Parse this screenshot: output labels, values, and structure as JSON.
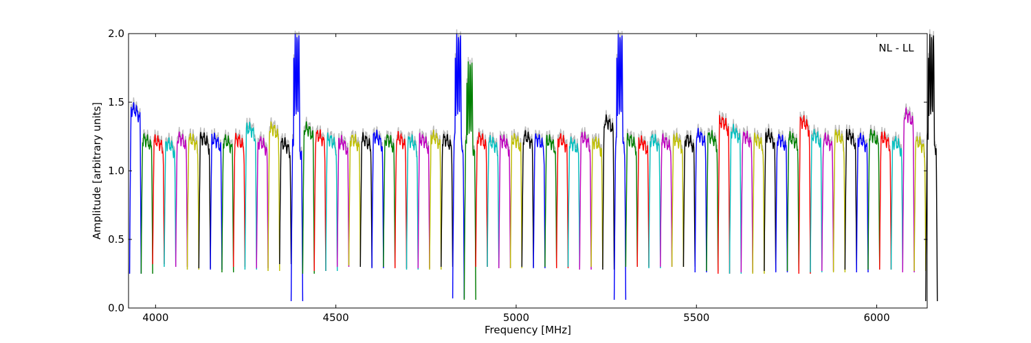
{
  "chart_data": {
    "type": "line",
    "xlabel": "Frequency [MHz]",
    "ylabel": "Amplitude [arbitrary units]",
    "xlim": [
      3925,
      6140
    ],
    "ylim": [
      0.0,
      2.0
    ],
    "xticks": [
      {
        "value": 4000,
        "label": "4000"
      },
      {
        "value": 4500,
        "label": "4500"
      },
      {
        "value": 5000,
        "label": "5000"
      },
      {
        "value": 5500,
        "label": "5500"
      },
      {
        "value": 6000,
        "label": "6000"
      }
    ],
    "yticks": [
      {
        "value": 0.0,
        "label": "0.0"
      },
      {
        "value": 0.5,
        "label": "0.5"
      },
      {
        "value": 1.0,
        "label": "1.0"
      },
      {
        "value": 1.5,
        "label": "1.5"
      },
      {
        "value": 2.0,
        "label": "2.0"
      }
    ],
    "annotation": "NL - LL",
    "grid": false,
    "colors": {
      "b": "#0000ff",
      "g": "#008000",
      "r": "#ff0000",
      "c": "#00bfbf",
      "m": "#bf00bf",
      "y": "#bfbf00",
      "k": "#000000",
      "background_trace": "#bbbbbb"
    },
    "color_cycle": [
      "b",
      "g",
      "r",
      "c",
      "m",
      "y",
      "k"
    ],
    "channel_start": 3928,
    "channel_width": 32,
    "channels": [
      {
        "level": 1.44,
        "min": 0.25
      },
      {
        "level": 1.22,
        "min": 0.25
      },
      {
        "level": 1.21,
        "min": 0.32
      },
      {
        "level": 1.19,
        "min": 0.3
      },
      {
        "level": 1.23,
        "min": 0.3
      },
      {
        "level": 1.22,
        "min": 0.28
      },
      {
        "level": 1.23,
        "min": 0.29
      },
      {
        "level": 1.22,
        "min": 0.28
      },
      {
        "level": 1.21,
        "min": 0.26
      },
      {
        "level": 1.22,
        "min": 0.3
      },
      {
        "level": 1.3,
        "min": 0.28
      },
      {
        "level": 1.2,
        "min": 0.29
      },
      {
        "level": 1.3,
        "min": 0.27
      },
      {
        "level": 1.19,
        "min": 0.32
      },
      {
        "level": 1.18,
        "min": 0.05,
        "spike": 2.0
      },
      {
        "level": 1.3,
        "min": 0.25
      },
      {
        "level": 1.25,
        "min": 0.27
      },
      {
        "level": 1.22,
        "min": 0.27
      },
      {
        "level": 1.2,
        "min": 0.3
      },
      {
        "level": 1.22,
        "min": 0.31
      },
      {
        "level": 1.22,
        "min": 0.3
      },
      {
        "level": 1.24,
        "min": 0.29
      },
      {
        "level": 1.22,
        "min": 0.3
      },
      {
        "level": 1.23,
        "min": 0.29
      },
      {
        "level": 1.21,
        "min": 0.28
      },
      {
        "level": 1.22,
        "min": 0.29
      },
      {
        "level": 1.24,
        "min": 0.28
      },
      {
        "level": 1.22,
        "min": 0.3
      },
      {
        "level": 1.22,
        "min": 0.07,
        "spike": 2.0
      },
      {
        "level": 1.2,
        "min": 0.06,
        "spike": 1.8
      },
      {
        "level": 1.23,
        "min": 0.3
      },
      {
        "level": 1.2,
        "min": 0.3
      },
      {
        "level": 1.21,
        "min": 0.29
      },
      {
        "level": 1.22,
        "min": 0.29
      },
      {
        "level": 1.24,
        "min": 0.3
      },
      {
        "level": 1.22,
        "min": 0.29
      },
      {
        "level": 1.21,
        "min": 0.3
      },
      {
        "level": 1.22,
        "min": 0.29
      },
      {
        "level": 1.19,
        "min": 0.3
      },
      {
        "level": 1.23,
        "min": 0.28
      },
      {
        "level": 1.2,
        "min": 0.3
      },
      {
        "level": 1.35,
        "min": 0.28
      },
      {
        "level": 1.22,
        "min": 0.06,
        "spike": 2.0
      },
      {
        "level": 1.22,
        "min": 0.3
      },
      {
        "level": 1.2,
        "min": 0.3
      },
      {
        "level": 1.22,
        "min": 0.29
      },
      {
        "level": 1.21,
        "min": 0.3
      },
      {
        "level": 1.22,
        "min": 0.3
      },
      {
        "level": 1.22,
        "min": 0.3
      },
      {
        "level": 1.25,
        "min": 0.26
      },
      {
        "level": 1.24,
        "min": 0.27
      },
      {
        "level": 1.35,
        "min": 0.25
      },
      {
        "level": 1.28,
        "min": 0.25
      },
      {
        "level": 1.24,
        "min": 0.26
      },
      {
        "level": 1.22,
        "min": 0.25
      },
      {
        "level": 1.25,
        "min": 0.27
      },
      {
        "level": 1.22,
        "min": 0.26
      },
      {
        "level": 1.23,
        "min": 0.27
      },
      {
        "level": 1.35,
        "min": 0.25
      },
      {
        "level": 1.25,
        "min": 0.26
      },
      {
        "level": 1.22,
        "min": 0.27
      },
      {
        "level": 1.25,
        "min": 0.26
      },
      {
        "level": 1.25,
        "min": 0.28
      },
      {
        "level": 1.22,
        "min": 0.26
      },
      {
        "level": 1.25,
        "min": 0.28
      },
      {
        "level": 1.23,
        "min": 0.28
      },
      {
        "level": 1.2,
        "min": 0.28
      },
      {
        "level": 1.4,
        "min": 0.26
      },
      {
        "level": 1.2,
        "min": 0.27
      },
      {
        "level": 1.22,
        "min": 0.05,
        "spike": 2.0
      }
    ]
  }
}
